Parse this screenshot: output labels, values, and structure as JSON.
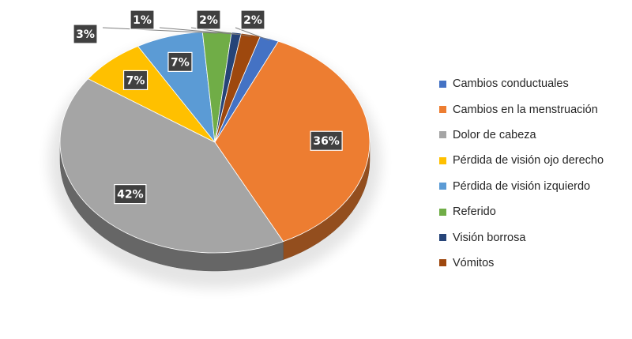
{
  "chart_data": {
    "type": "pie",
    "title": "",
    "legend_position": "right",
    "slices": [
      {
        "name": "Cambios conductuales",
        "value": 2,
        "label": "2%",
        "color": "#4472C4"
      },
      {
        "name": "Cambios en la menstruación",
        "value": 36,
        "label": "36%",
        "color": "#ED7D31"
      },
      {
        "name": "Dolor de cabeza",
        "value": 42,
        "label": "42%",
        "color": "#A5A5A5"
      },
      {
        "name": "Pérdida de visión ojo derecho",
        "value": 7,
        "label": "7%",
        "color": "#FFC000"
      },
      {
        "name": "Pérdida de visión izquierdo",
        "value": 7,
        "label": "7%",
        "color": "#5B9BD5"
      },
      {
        "name": "Referido",
        "value": 3,
        "label": "3%",
        "color": "#70AD47"
      },
      {
        "name": "Visión borrosa",
        "value": 1,
        "label": "1%",
        "color": "#264478"
      },
      {
        "name": "Vómitos",
        "value": 2,
        "label": "2%",
        "color": "#9E480E"
      }
    ]
  }
}
